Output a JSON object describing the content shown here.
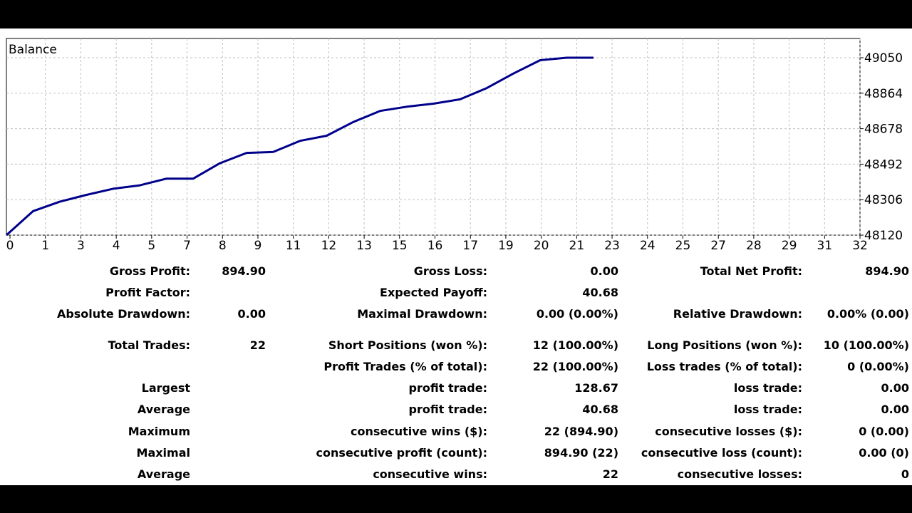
{
  "chart_data": {
    "type": "line",
    "title": "Balance",
    "x_ticks": [
      "0",
      "1",
      "3",
      "4",
      "5",
      "7",
      "8",
      "9",
      "11",
      "12",
      "13",
      "15",
      "16",
      "17",
      "19",
      "20",
      "21",
      "23",
      "24",
      "25",
      "27",
      "28",
      "29",
      "31",
      "32"
    ],
    "y_ticks": [
      "49050",
      "48864",
      "48678",
      "48492",
      "48306",
      "48120"
    ],
    "ylim": [
      48120,
      49050
    ],
    "xlim": [
      0,
      24
    ],
    "grid": true,
    "series": [
      {
        "color": "#00008B",
        "x": [
          0,
          1,
          2,
          3,
          4,
          5,
          6,
          7,
          8,
          9,
          10,
          11,
          12,
          13,
          14,
          15,
          16,
          17,
          18,
          19,
          20,
          21,
          22
        ],
        "y": [
          48120,
          48246,
          48295,
          48331,
          48363,
          48381,
          48416,
          48416,
          48497,
          48551,
          48556,
          48614,
          48641,
          48713,
          48771,
          48793,
          48809,
          48832,
          48891,
          48967,
          49037,
          49050,
          49050
        ]
      }
    ]
  },
  "stats_rows": [
    {
      "c1_label": "Gross Profit:",
      "c1_value": "894.90",
      "c2_label": "Gross Loss:",
      "c2_value": "0.00",
      "c3_label": "Total Net Profit:",
      "c3_value": "894.90"
    },
    {
      "c1_label": "Profit Factor:",
      "c1_value": "",
      "c2_label": "Expected Payoff:",
      "c2_value": "40.68",
      "c3_label": "",
      "c3_value": ""
    },
    {
      "c1_label": "Absolute Drawdown:",
      "c1_value": "0.00",
      "c2_label": "Maximal Drawdown:",
      "c2_value": "0.00 (0.00%)",
      "c3_label": "Relative Drawdown:",
      "c3_value": "0.00% (0.00)"
    },
    {
      "c1_label": "Total Trades:",
      "c1_value": "22",
      "c2_label": "Short Positions (won %):",
      "c2_value": "12 (100.00%)",
      "c3_label": "Long Positions (won %):",
      "c3_value": "10 (100.00%)"
    },
    {
      "c1_label": "",
      "c1_value": "",
      "c2_label": "Profit Trades (% of total):",
      "c2_value": "22 (100.00%)",
      "c3_label": "Loss trades (% of total):",
      "c3_value": "0 (0.00%)"
    },
    {
      "c1_label": "Largest",
      "c1_value": "",
      "c2_label": "profit trade:",
      "c2_value": "128.67",
      "c3_label": "loss trade:",
      "c3_value": "0.00"
    },
    {
      "c1_label": "Average",
      "c1_value": "",
      "c2_label": "profit trade:",
      "c2_value": "40.68",
      "c3_label": "loss trade:",
      "c3_value": "0.00"
    },
    {
      "c1_label": "Maximum",
      "c1_value": "",
      "c2_label": "consecutive wins ($):",
      "c2_value": "22 (894.90)",
      "c3_label": "consecutive losses ($):",
      "c3_value": "0 (0.00)"
    },
    {
      "c1_label": "Maximal",
      "c1_value": "",
      "c2_label": "consecutive profit (count):",
      "c2_value": "894.90 (22)",
      "c3_label": "consecutive loss (count):",
      "c3_value": "0.00 (0)"
    },
    {
      "c1_label": "Average",
      "c1_value": "",
      "c2_label": "consecutive wins:",
      "c2_value": "22",
      "c3_label": "consecutive losses:",
      "c3_value": "0"
    }
  ]
}
